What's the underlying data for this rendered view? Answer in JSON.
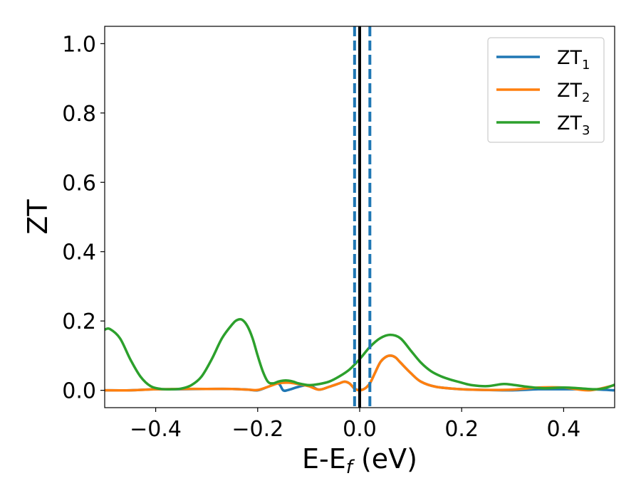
{
  "chart_data": {
    "type": "line",
    "xlabel_main": "E-E",
    "xlabel_sub": "f",
    "xlabel_unit": " (eV)",
    "ylabel": "ZT",
    "xlim": [
      -0.5,
      0.5
    ],
    "ylim": [
      -0.05,
      1.05
    ],
    "xticks": [
      -0.4,
      -0.2,
      0.0,
      0.2,
      0.4
    ],
    "xtick_labels": [
      "−0.4",
      "−0.2",
      "0.0",
      "0.2",
      "0.4"
    ],
    "yticks": [
      0.0,
      0.2,
      0.4,
      0.6,
      0.8,
      1.0
    ],
    "ytick_labels": [
      "0.0",
      "0.2",
      "0.4",
      "0.6",
      "0.8",
      "1.0"
    ],
    "legend_position": "top-right",
    "grid": false,
    "vlines": [
      {
        "x": 0.0,
        "style": "solid",
        "color": "#000000"
      },
      {
        "x": -0.01,
        "style": "dashed",
        "color": "#1f77b4"
      },
      {
        "x": 0.02,
        "style": "dashed",
        "color": "#1f77b4"
      }
    ],
    "series": [
      {
        "name": "ZT",
        "name_sub": "1",
        "color": "#1f77b4",
        "x": [
          -0.5,
          -0.45,
          -0.4,
          -0.35,
          -0.3,
          -0.25,
          -0.22,
          -0.2,
          -0.18,
          -0.16,
          -0.15,
          -0.14,
          -0.12,
          -0.1,
          -0.08,
          -0.06,
          -0.04,
          -0.03,
          -0.02,
          -0.01,
          0.0,
          0.01,
          0.02,
          0.03,
          0.04,
          0.05,
          0.06,
          0.07,
          0.08,
          0.1,
          0.12,
          0.15,
          0.2,
          0.25,
          0.3,
          0.35,
          0.4,
          0.45,
          0.5
        ],
        "values": [
          0.0,
          0.0,
          0.003,
          0.003,
          0.004,
          0.004,
          0.002,
          0.0,
          0.01,
          0.02,
          0.0,
          0.001,
          0.01,
          0.015,
          0.002,
          0.01,
          0.02,
          0.025,
          0.02,
          0.005,
          0.001,
          0.005,
          0.02,
          0.05,
          0.08,
          0.095,
          0.1,
          0.095,
          0.08,
          0.05,
          0.025,
          0.01,
          0.003,
          0.001,
          0.0,
          0.003,
          0.003,
          0.003,
          0.0
        ]
      },
      {
        "name": "ZT",
        "name_sub": "2",
        "color": "#ff7f0e",
        "x": [
          -0.5,
          -0.45,
          -0.4,
          -0.35,
          -0.3,
          -0.25,
          -0.22,
          -0.2,
          -0.18,
          -0.16,
          -0.14,
          -0.12,
          -0.1,
          -0.08,
          -0.06,
          -0.04,
          -0.03,
          -0.02,
          -0.01,
          0.0,
          0.01,
          0.02,
          0.03,
          0.04,
          0.05,
          0.06,
          0.07,
          0.08,
          0.1,
          0.12,
          0.15,
          0.2,
          0.25,
          0.3,
          0.35,
          0.4,
          0.45,
          0.5
        ],
        "values": [
          0.0,
          0.0,
          0.003,
          0.004,
          0.004,
          0.004,
          0.002,
          0.001,
          0.01,
          0.02,
          0.022,
          0.018,
          0.012,
          0.002,
          0.01,
          0.02,
          0.025,
          0.02,
          0.005,
          0.0,
          0.005,
          0.02,
          0.05,
          0.08,
          0.095,
          0.1,
          0.095,
          0.08,
          0.05,
          0.025,
          0.01,
          0.003,
          0.001,
          0.002,
          0.008,
          0.008,
          0.0,
          0.015
        ]
      },
      {
        "name": "ZT",
        "name_sub": "3",
        "color": "#2ca02c",
        "x": [
          -0.5,
          -0.49,
          -0.47,
          -0.45,
          -0.43,
          -0.41,
          -0.39,
          -0.37,
          -0.35,
          -0.33,
          -0.31,
          -0.29,
          -0.27,
          -0.25,
          -0.24,
          -0.23,
          -0.22,
          -0.21,
          -0.2,
          -0.19,
          -0.18,
          -0.17,
          -0.16,
          -0.15,
          -0.14,
          -0.13,
          -0.12,
          -0.1,
          -0.08,
          -0.06,
          -0.04,
          -0.02,
          0.0,
          0.02,
          0.04,
          0.06,
          0.08,
          0.1,
          0.12,
          0.14,
          0.16,
          0.18,
          0.2,
          0.22,
          0.25,
          0.28,
          0.3,
          0.33,
          0.36,
          0.4,
          0.43,
          0.46,
          0.48,
          0.5
        ],
        "values": [
          0.175,
          0.177,
          0.15,
          0.09,
          0.04,
          0.012,
          0.004,
          0.003,
          0.005,
          0.015,
          0.04,
          0.09,
          0.15,
          0.19,
          0.203,
          0.203,
          0.185,
          0.15,
          0.1,
          0.055,
          0.025,
          0.02,
          0.025,
          0.028,
          0.028,
          0.025,
          0.02,
          0.015,
          0.018,
          0.025,
          0.04,
          0.06,
          0.09,
          0.125,
          0.15,
          0.16,
          0.15,
          0.115,
          0.08,
          0.055,
          0.04,
          0.03,
          0.022,
          0.015,
          0.012,
          0.018,
          0.016,
          0.01,
          0.006,
          0.008,
          0.006,
          0.003,
          0.006,
          0.016
        ]
      }
    ]
  }
}
